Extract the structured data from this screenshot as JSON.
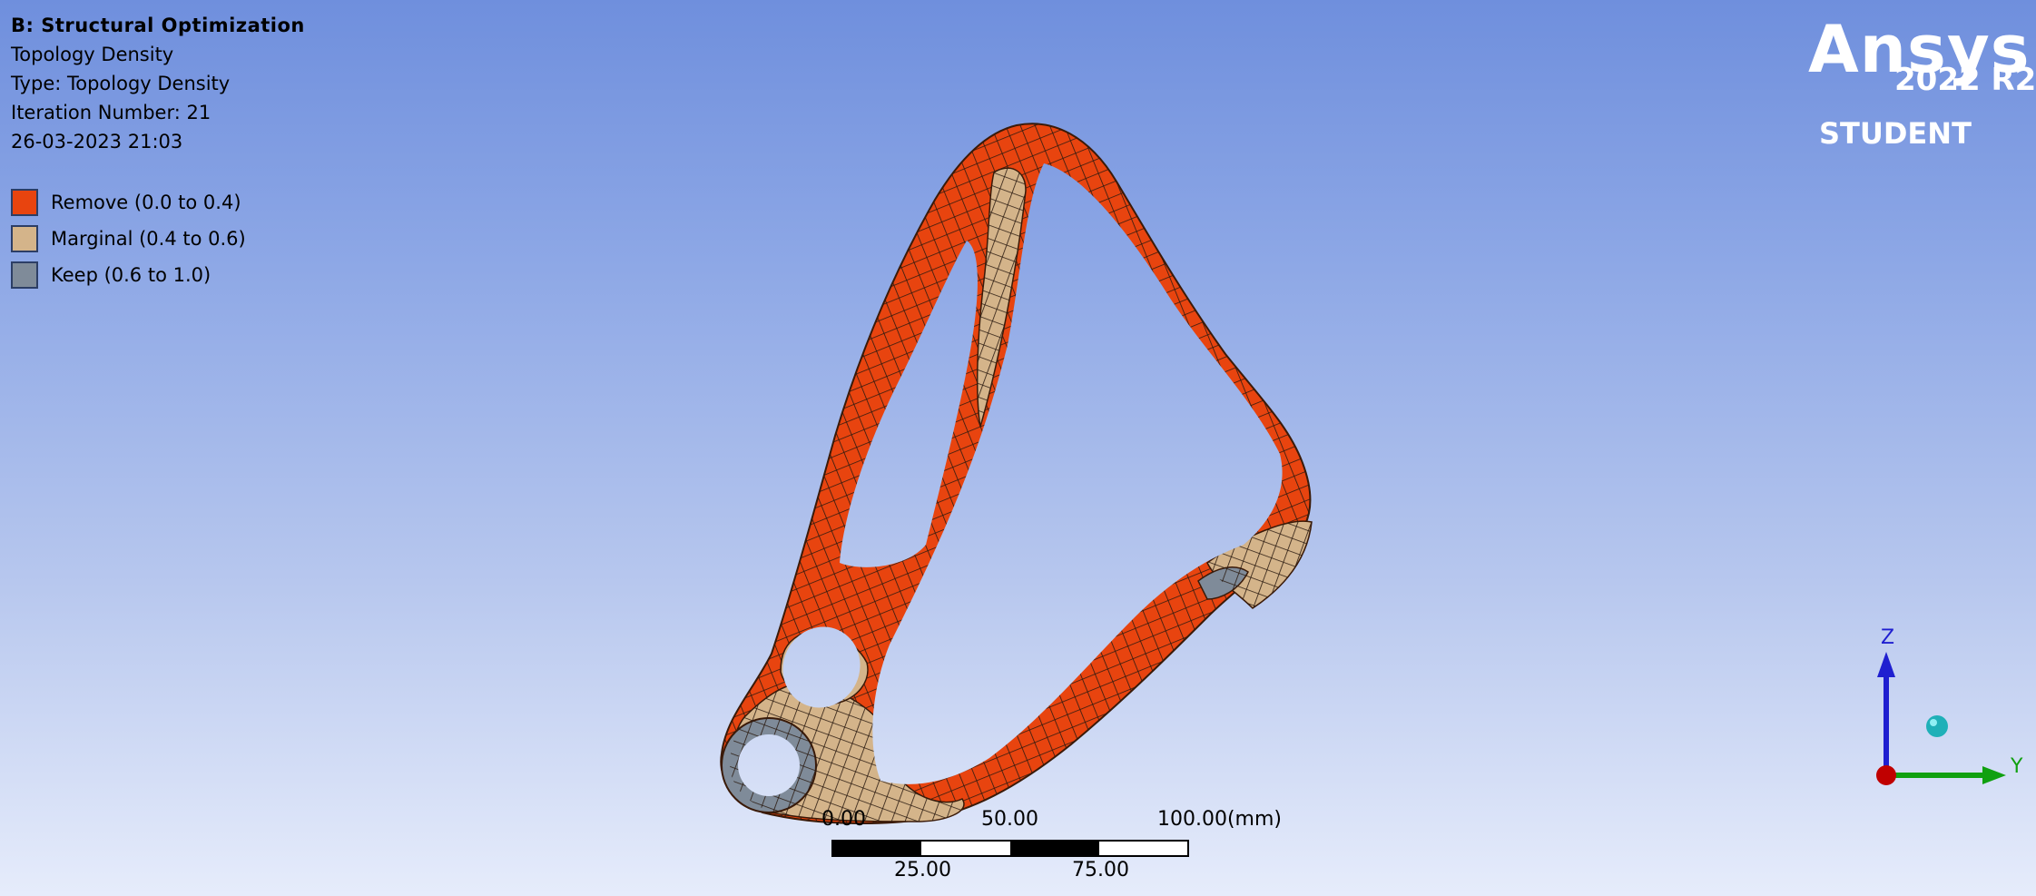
{
  "result_info": {
    "title": "B: Structural Optimization",
    "result_name": "Topology Density",
    "type": "Type: Topology Density",
    "iteration": "Iteration Number: 21",
    "timestamp": "26-03-2023 21:03"
  },
  "legend": {
    "items": [
      {
        "label": "Remove (0.0 to 0.4)",
        "color": "#e8440f"
      },
      {
        "label": "Marginal (0.4 to 0.6)",
        "color": "#d4b48a"
      },
      {
        "label": "Keep (0.6 to 1.0)",
        "color": "#7f8b99"
      }
    ]
  },
  "branding": {
    "brand": "Ansys",
    "version": "2022 R2",
    "edition": "STUDENT"
  },
  "scale_bar": {
    "top_labels": [
      "0.00",
      "50.00",
      "100.00(mm)"
    ],
    "bottom_labels": [
      "25.00",
      "75.00"
    ]
  },
  "triad": {
    "z_label": "Z",
    "y_label": "Y",
    "z_color": "#1f1fd0",
    "y_color": "#10a010",
    "x_color": "#c00000"
  },
  "colors": {
    "remove": "#e8440f",
    "marginal": "#d4b48a",
    "keep": "#7f8b99",
    "mesh_line": "#2a1a10"
  }
}
